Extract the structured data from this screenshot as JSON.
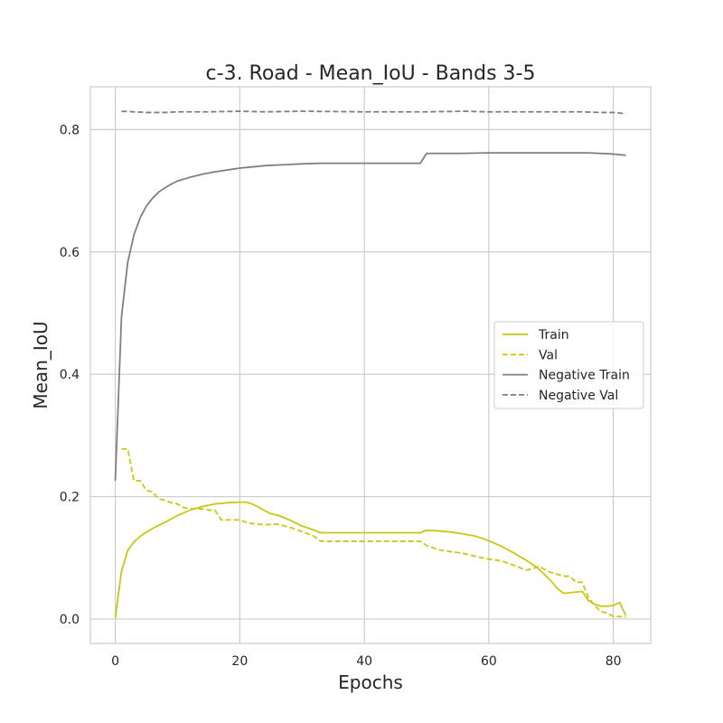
{
  "chart_data": {
    "type": "line",
    "title": "c-3. Road - Mean_IoU - Bands 3-5",
    "xlabel": "Epochs",
    "ylabel": "Mean_IoU",
    "xlim": [
      -4,
      86
    ],
    "ylim": [
      -0.04,
      0.87
    ],
    "xticks": [
      0,
      20,
      40,
      60,
      80
    ],
    "xtick_labels": [
      "0",
      "20",
      "40",
      "60",
      "80"
    ],
    "yticks": [
      0.0,
      0.2,
      0.4,
      0.6,
      0.8
    ],
    "ytick_labels": [
      "0.0",
      "0.2",
      "0.4",
      "0.6",
      "0.8"
    ],
    "grid": true,
    "legend_position": "center-right",
    "series": [
      {
        "name": "Train",
        "color": "#c8c814",
        "dash": "solid",
        "x": [
          0,
          1,
          2,
          3,
          4,
          5,
          6,
          8,
          10,
          12,
          14,
          16,
          18,
          20,
          21,
          22,
          23,
          24,
          25,
          26,
          28,
          30,
          32,
          33,
          40,
          49,
          50,
          52,
          54,
          56,
          58,
          60,
          62,
          64,
          66,
          68,
          70,
          71,
          72,
          74,
          75,
          76,
          77,
          78,
          79,
          80,
          81,
          82
        ],
        "y": [
          0.002,
          0.078,
          0.112,
          0.126,
          0.135,
          0.142,
          0.148,
          0.158,
          0.169,
          0.178,
          0.184,
          0.188,
          0.19,
          0.191,
          0.191,
          0.188,
          0.183,
          0.177,
          0.172,
          0.17,
          0.162,
          0.152,
          0.145,
          0.141,
          0.141,
          0.141,
          0.145,
          0.144,
          0.142,
          0.139,
          0.135,
          0.128,
          0.119,
          0.108,
          0.096,
          0.082,
          0.062,
          0.05,
          0.042,
          0.044,
          0.045,
          0.03,
          0.024,
          0.021,
          0.021,
          0.022,
          0.027,
          0.006
        ]
      },
      {
        "name": "Val",
        "color": "#c8c814",
        "dash": "dashed",
        "x": [
          1,
          2,
          3,
          4,
          5,
          6,
          7,
          8,
          9,
          10,
          11,
          12,
          13,
          14,
          15,
          16,
          17,
          18,
          19,
          20,
          21,
          22,
          24,
          26,
          28,
          30,
          32,
          33,
          40,
          49,
          50,
          52,
          54,
          56,
          58,
          60,
          62,
          64,
          66,
          67,
          68,
          70,
          72,
          73,
          74,
          75,
          76,
          77,
          78,
          79,
          80,
          81,
          82
        ],
        "y": [
          0.278,
          0.278,
          0.226,
          0.226,
          0.21,
          0.208,
          0.196,
          0.194,
          0.19,
          0.188,
          0.182,
          0.18,
          0.18,
          0.18,
          0.178,
          0.178,
          0.162,
          0.162,
          0.162,
          0.162,
          0.158,
          0.156,
          0.154,
          0.155,
          0.15,
          0.143,
          0.135,
          0.127,
          0.127,
          0.127,
          0.12,
          0.113,
          0.11,
          0.107,
          0.102,
          0.098,
          0.095,
          0.088,
          0.08,
          0.082,
          0.086,
          0.076,
          0.07,
          0.07,
          0.06,
          0.06,
          0.035,
          0.022,
          0.012,
          0.01,
          0.004,
          0.004,
          0.003
        ]
      },
      {
        "name": "Negative Train",
        "color": "#808080",
        "dash": "solid",
        "x": [
          0,
          1,
          2,
          3,
          4,
          5,
          6,
          7,
          8,
          9,
          10,
          12,
          14,
          16,
          18,
          20,
          22,
          24,
          26,
          28,
          30,
          33,
          40,
          49,
          50,
          55,
          60,
          70,
          76,
          80,
          82
        ],
        "y": [
          0.226,
          0.494,
          0.583,
          0.628,
          0.656,
          0.675,
          0.688,
          0.698,
          0.705,
          0.711,
          0.716,
          0.722,
          0.727,
          0.731,
          0.734,
          0.737,
          0.739,
          0.741,
          0.742,
          0.743,
          0.744,
          0.745,
          0.745,
          0.745,
          0.761,
          0.761,
          0.762,
          0.762,
          0.762,
          0.76,
          0.758
        ]
      },
      {
        "name": "Negative Val",
        "color": "#808080",
        "dash": "dashed",
        "x": [
          1,
          3,
          5,
          8,
          10,
          15,
          20,
          24,
          30,
          40,
          50,
          56,
          60,
          65,
          70,
          72,
          75,
          78,
          80,
          82
        ],
        "y": [
          0.83,
          0.829,
          0.828,
          0.828,
          0.829,
          0.829,
          0.83,
          0.829,
          0.83,
          0.829,
          0.829,
          0.83,
          0.829,
          0.829,
          0.829,
          0.829,
          0.829,
          0.828,
          0.828,
          0.826
        ]
      }
    ]
  }
}
